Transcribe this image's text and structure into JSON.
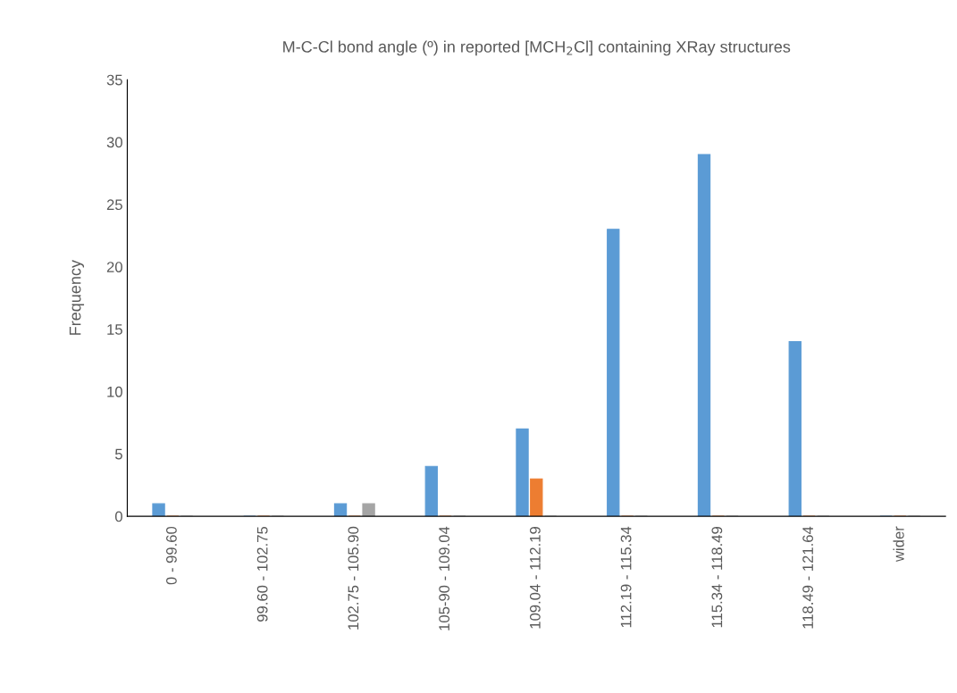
{
  "chart_data": {
    "type": "bar",
    "title": "M-C-Cl bond angle (º) in reported [MCH$_{2}$Cl] containing XRay structures",
    "ylabel": "Frequency",
    "categories": [
      "0 - 99.60",
      "99.60 - 102.75",
      "102.75 - 105.90",
      "105-90 - 109.04",
      "109.04 - 112.19",
      "112.19 - 115.34",
      "115.34 - 118.49",
      "118.49 - 121.64",
      "wider"
    ],
    "series": [
      {
        "color": "#5b9bd5",
        "values": [
          1,
          0,
          1,
          4,
          7,
          23,
          29,
          14,
          0
        ]
      },
      {
        "color": "#ed7d31",
        "values": [
          0,
          0,
          0,
          0,
          3,
          0,
          0,
          0,
          0
        ]
      },
      {
        "color": "#a5a5a5",
        "values": [
          0,
          0,
          1,
          0,
          0,
          0,
          0,
          0,
          0
        ]
      }
    ],
    "ylim": [
      0,
      35
    ],
    "yticks": [
      0,
      5,
      10,
      15,
      20,
      25,
      30,
      35
    ],
    "grid": false,
    "legend": false
  }
}
